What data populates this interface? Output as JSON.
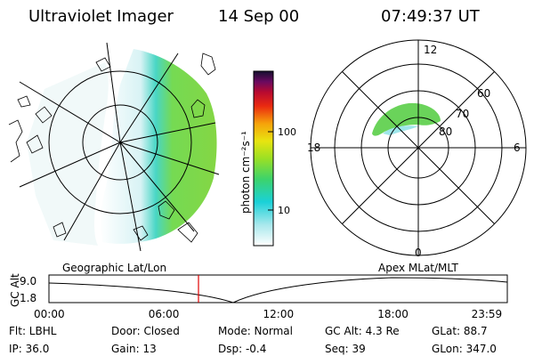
{
  "header": {
    "title": "Ultraviolet Imager",
    "date": "14 Sep 00",
    "time": "07:49:37 UT"
  },
  "colorbar": {
    "label": "photon cm⁻²s⁻¹",
    "ticks": [
      "100",
      "10"
    ]
  },
  "polar": {
    "mlt_labels": [
      "12",
      "18",
      "6",
      "0"
    ],
    "mlat_labels": [
      "60",
      "70",
      "80"
    ]
  },
  "footer_labels": {
    "geo": "Geographic Lat/Lon",
    "apex": "Apex  MLat/MLT"
  },
  "orbit_plot": {
    "ylabel": "GC Alt",
    "yticks": [
      "9.0",
      "1.8"
    ],
    "xticks": [
      "00:00",
      "06:00",
      "12:00",
      "18:00",
      "23:59"
    ],
    "current_time_hours": 7.83,
    "marker_color": "#e00000"
  },
  "status": {
    "flt": "Flt: LBHL",
    "door": "Door: Closed",
    "mode": "Mode: Normal",
    "gc_alt": "GC Alt: 4.3 Re",
    "glat": "GLat:  88.7",
    "ip": "IP: 36.0",
    "gain": "Gain: 13",
    "dsp": "Dsp:    -0.4",
    "seq": "Seq: 39",
    "glon": "GLon: 347.0"
  }
}
